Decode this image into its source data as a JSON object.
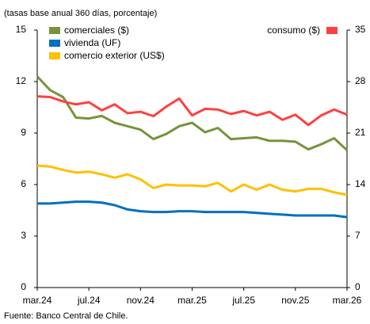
{
  "chart_data": {
    "type": "line",
    "subtitle": "(tasas base anual 360 días, porcentaje)",
    "source": "Fuente: Banco Central de Chile.",
    "categories": [
      "mar.24",
      null,
      null,
      null,
      "jul.24",
      null,
      null,
      null,
      "nov.24",
      null,
      null,
      null,
      "mar.25",
      null,
      null,
      null,
      "jul.25",
      null,
      null,
      null,
      "nov.25",
      null,
      null,
      null,
      "mar.26"
    ],
    "series": [
      {
        "name": "comerciales ($)",
        "color": "#77933c",
        "values": [
          12.3,
          11.5,
          11.1,
          9.9,
          9.85,
          10.0,
          9.6,
          9.4,
          9.2,
          8.65,
          8.95,
          9.4,
          9.6,
          9.05,
          9.3,
          8.65,
          8.7,
          8.75,
          8.55,
          8.55,
          8.5,
          8.05,
          8.35,
          8.7,
          8.0
        ]
      },
      {
        "name": "vivienda (UF)",
        "color": "#0070c0",
        "values": [
          4.9,
          4.9,
          4.95,
          5.0,
          5.0,
          4.95,
          4.8,
          4.55,
          4.45,
          4.4,
          4.4,
          4.45,
          4.45,
          4.4,
          4.4,
          4.4,
          4.4,
          4.35,
          4.3,
          4.25,
          4.2,
          4.2,
          4.2,
          4.2,
          4.1
        ]
      },
      {
        "name": "comercio exterior (US$)",
        "color": "#ffc000",
        "values": [
          7.1,
          7.05,
          6.85,
          6.7,
          6.75,
          6.6,
          6.4,
          6.6,
          6.3,
          5.8,
          6.0,
          5.95,
          5.95,
          5.9,
          6.1,
          5.6,
          6.0,
          5.7,
          6.0,
          5.7,
          5.6,
          5.75,
          5.75,
          5.55,
          5.4
        ]
      },
      {
        "name": "consumo ($)",
        "color": "#ff4040",
        "axis": "y2",
        "values": [
          26.0,
          25.9,
          25.3,
          24.9,
          25.2,
          24.1,
          24.9,
          23.7,
          23.9,
          23.3,
          24.6,
          25.7,
          23.4,
          24.3,
          24.2,
          23.6,
          24.0,
          23.4,
          23.9,
          22.8,
          23.5,
          22.1,
          23.4,
          24.2,
          23.5
        ]
      }
    ],
    "ylim": [
      0,
      15
    ],
    "yticks": [
      0,
      3,
      6,
      9,
      12,
      15
    ],
    "y2lim": [
      0,
      35
    ],
    "y2ticks": [
      0,
      7,
      14,
      21,
      28,
      35
    ]
  }
}
